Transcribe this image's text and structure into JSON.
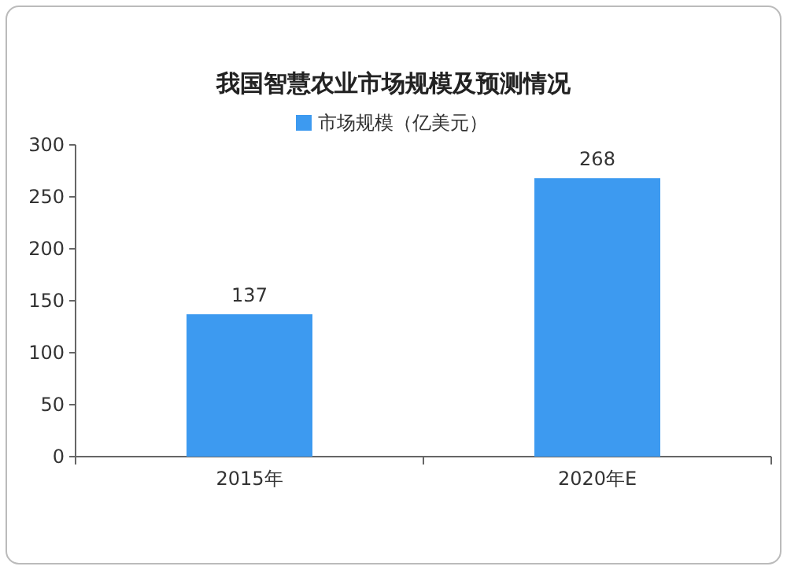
{
  "chart_data": {
    "type": "bar",
    "title": "我国智慧农业市场规模及预测情况",
    "categories": [
      "2015年",
      "2020年E"
    ],
    "series": [
      {
        "name": "市场规模（亿美元）",
        "color": "#3d9af0",
        "values": [
          137,
          268
        ]
      }
    ],
    "ylim": [
      0,
      300
    ],
    "yticks": [
      0,
      50,
      100,
      150,
      200,
      250,
      300
    ],
    "data_labels": true,
    "legend": "top",
    "grid": false
  }
}
